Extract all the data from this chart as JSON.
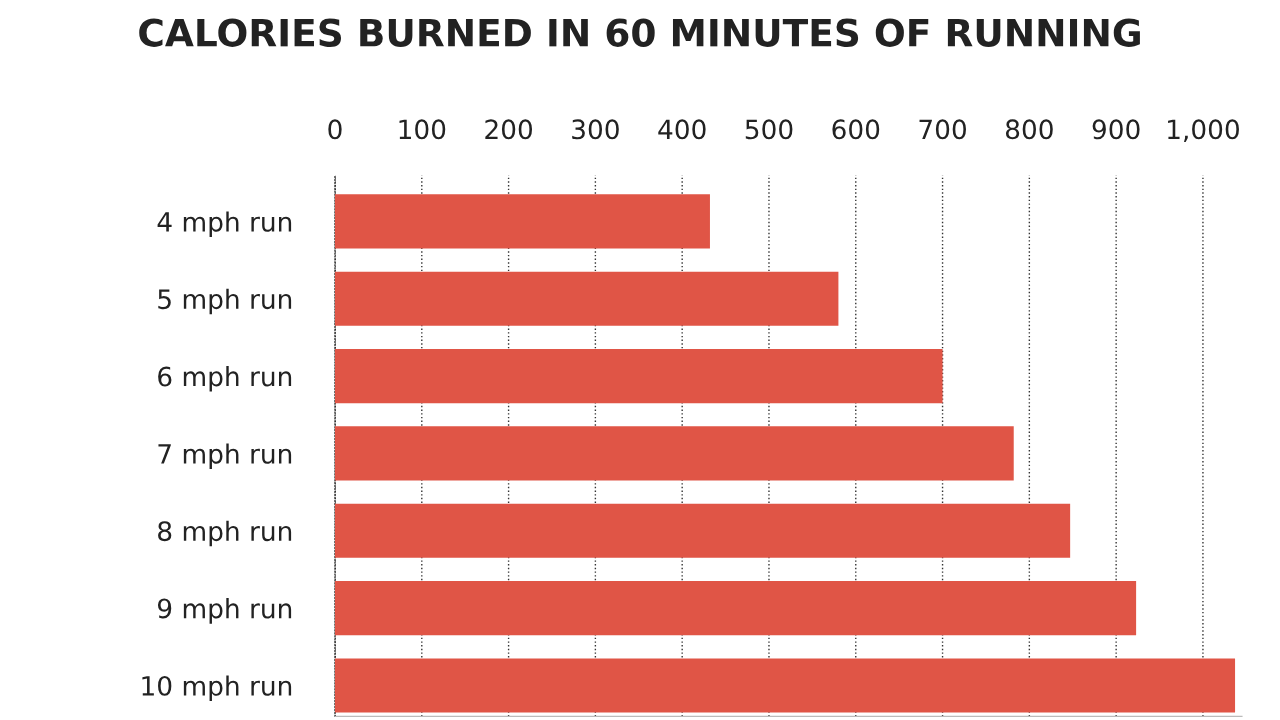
{
  "chart_data": {
    "type": "bar",
    "orientation": "horizontal",
    "title": "CALORIES BURNED IN 60 MINUTES OF RUNNING",
    "categories": [
      "4 mph run",
      "5 mph run",
      "6 mph run",
      "7 mph run",
      "8 mph run",
      "9 mph run",
      "10 mph run"
    ],
    "values": [
      432,
      580,
      700,
      782,
      847,
      923,
      1037
    ],
    "color": "#e05546",
    "xlim": [
      0,
      1045
    ],
    "xticks": [
      0,
      100,
      200,
      300,
      400,
      500,
      600,
      700,
      800,
      900,
      {
        "value": 1000,
        "label": "1,000"
      }
    ],
    "grid": "x",
    "line_style": "dotted",
    "legend": false
  }
}
